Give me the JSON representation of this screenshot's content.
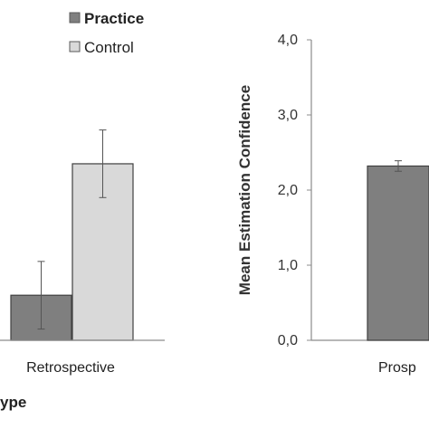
{
  "chart_data": [
    {
      "type": "bar",
      "categories": [
        "Retrospective"
      ],
      "series": [
        {
          "name": "Practice",
          "values": [
            0.6
          ],
          "error": [
            0.45
          ],
          "color": "#7f7f7f"
        },
        {
          "name": "Control",
          "values": [
            2.35
          ],
          "error": [
            0.45
          ],
          "color": "#d9d9d9"
        }
      ],
      "xlabel": "ype",
      "ylim": [
        0,
        4
      ],
      "legend": "top-left",
      "grid": false
    },
    {
      "type": "bar",
      "categories": [
        "Prosp"
      ],
      "series": [
        {
          "name": "Practice",
          "values": [
            2.32
          ],
          "error": [
            0.07
          ],
          "color": "#7f7f7f"
        }
      ],
      "ylabel": "Mean Estimation Confidence",
      "yticks": [
        "0,0",
        "1,0",
        "2,0",
        "3,0",
        "4,0"
      ],
      "ylim": [
        0,
        4
      ],
      "grid": false
    }
  ]
}
